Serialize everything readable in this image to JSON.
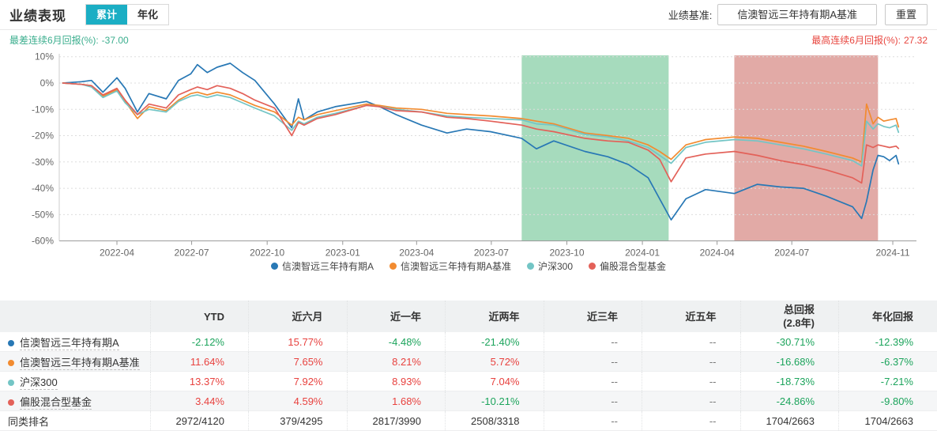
{
  "header": {
    "title": "业绩表现",
    "tabs": [
      {
        "label": "累计",
        "active": true
      },
      {
        "label": "年化",
        "active": false
      }
    ],
    "benchmark_label": "业绩基准:",
    "benchmark_value": "信澳智远三年持有期A基准",
    "reset_label": "重置"
  },
  "stats": {
    "worst_label": "最差连续6月回报(%):",
    "worst_value": "-37.00",
    "best_label": "最高连续6月回报(%):",
    "best_value": "27.32"
  },
  "colors": {
    "accent_tab": "#1BAEC4",
    "worst_text": "#3BAE8E",
    "best_text": "#E8463F",
    "cell": {
      "up": "#E8423F",
      "down": "#1CA45C",
      "plain": "#333333",
      "muted": "#777777"
    }
  },
  "chart_data": {
    "type": "line",
    "title": "",
    "xlabel": "",
    "ylabel": "",
    "ylabel_format": "percent",
    "ylim": [
      -60,
      10
    ],
    "grid": true,
    "legend_position": "bottom",
    "dates": [
      "2022-01-25",
      "2022-02-17",
      "2022-03-01",
      "2022-03-15",
      "2022-04-01",
      "2022-04-11",
      "2022-04-26",
      "2022-05-10",
      "2022-05-31",
      "2022-06-15",
      "2022-06-30",
      "2022-07-08",
      "2022-07-20",
      "2022-08-01",
      "2022-08-17",
      "2022-09-01",
      "2022-09-16",
      "2022-10-10",
      "2022-10-31",
      "2022-11-08",
      "2022-11-15",
      "2022-12-01",
      "2022-12-23",
      "2023-01-30",
      "2023-02-15",
      "2023-03-07",
      "2023-04-07",
      "2023-05-08",
      "2023-06-01",
      "2023-06-30",
      "2023-08-07",
      "2023-08-25",
      "2023-09-15",
      "2023-10-23",
      "2023-11-20",
      "2023-12-15",
      "2024-01-08",
      "2024-01-22",
      "2024-02-05",
      "2024-02-23",
      "2024-03-18",
      "2024-04-22",
      "2024-05-20",
      "2024-06-17",
      "2024-07-15",
      "2024-08-12",
      "2024-09-13",
      "2024-09-24",
      "2024-09-30",
      "2024-10-08",
      "2024-10-14",
      "2024-10-21",
      "2024-10-28",
      "2024-11-05",
      "2024-11-08"
    ],
    "series": [
      {
        "name": "信澳智远三年持有期A",
        "color": "#2878B5",
        "values": [
          0,
          0.5,
          1,
          -3.5,
          2,
          -2,
          -11,
          -4,
          -6,
          1,
          3.5,
          7,
          4,
          6,
          7.5,
          4,
          1,
          -8,
          -17,
          -6,
          -14,
          -11,
          -9,
          -7,
          -9,
          -12,
          -16,
          -19,
          -17.5,
          -18.5,
          -21,
          -25,
          -22,
          -26,
          -28,
          -31,
          -36,
          -44,
          -52,
          -44,
          -40.5,
          -42,
          -38.5,
          -39.5,
          -40,
          -43,
          -47,
          -51.5,
          -45,
          -33,
          -27.5,
          -28,
          -29.5,
          -27.5,
          -30.71
        ]
      },
      {
        "name": "信澳智远三年持有期A基准",
        "color": "#F28B30",
        "values": [
          0,
          -0.5,
          -1,
          -5,
          -2.5,
          -7,
          -13.5,
          -9,
          -10.5,
          -6.5,
          -4,
          -3.5,
          -4.5,
          -3.5,
          -4.5,
          -6.5,
          -8.5,
          -11,
          -16,
          -13,
          -14,
          -12,
          -10.5,
          -8,
          -8.5,
          -9.5,
          -10,
          -11.5,
          -12,
          -12.5,
          -13.5,
          -14.5,
          -15.5,
          -19,
          -20,
          -21,
          -23.5,
          -26,
          -29,
          -23.5,
          -21.5,
          -20.5,
          -21,
          -22.5,
          -24,
          -26,
          -28.5,
          -30,
          -8,
          -15.5,
          -13,
          -14.5,
          -14,
          -13.5,
          -16.68
        ]
      },
      {
        "name": "沪深300",
        "color": "#73C5C5",
        "values": [
          0,
          -0.5,
          -1.5,
          -5.5,
          -3,
          -7.5,
          -12,
          -10,
          -11,
          -7,
          -5,
          -4.5,
          -5.5,
          -4.5,
          -5.5,
          -7.5,
          -9.5,
          -12.5,
          -18,
          -14.5,
          -15.5,
          -13,
          -11.5,
          -8.5,
          -9,
          -10,
          -11,
          -12.5,
          -13,
          -13.5,
          -14,
          -15.5,
          -16,
          -19.5,
          -20.5,
          -22,
          -24.5,
          -27.5,
          -30.5,
          -24.5,
          -22.5,
          -21.5,
          -22,
          -23.5,
          -25,
          -27,
          -29.5,
          -31.5,
          -14.5,
          -17.5,
          -15.5,
          -16.5,
          -17,
          -16,
          -18.73
        ]
      },
      {
        "name": "偏股混合型基金",
        "color": "#E36159",
        "values": [
          0,
          -0.5,
          -1,
          -4.5,
          -2,
          -6.5,
          -12,
          -8,
          -9.5,
          -4.5,
          -2.5,
          -1.5,
          -2.5,
          -1,
          -2,
          -4,
          -6.5,
          -9.5,
          -20,
          -15,
          -16,
          -13.5,
          -12,
          -8.5,
          -9,
          -10.5,
          -11,
          -13,
          -13.5,
          -14.5,
          -16,
          -17.5,
          -18.5,
          -21,
          -22,
          -22.5,
          -25.5,
          -29,
          -37.5,
          -28.5,
          -27,
          -26,
          -27.5,
          -29.5,
          -31,
          -33,
          -36,
          -38,
          -23.5,
          -24.5,
          -23.5,
          -24,
          -24.5,
          -24,
          -24.86
        ]
      }
    ],
    "y_ticks": [
      10,
      0,
      -10,
      -20,
      -30,
      -40,
      -50,
      -60
    ],
    "x_ticks": [
      {
        "date": "2022-04-01",
        "label": "2022-04"
      },
      {
        "date": "2022-07-01",
        "label": "2022-07"
      },
      {
        "date": "2022-10-01",
        "label": "2022-10"
      },
      {
        "date": "2023-01-01",
        "label": "2023-01"
      },
      {
        "date": "2023-04-01",
        "label": "2023-04"
      },
      {
        "date": "2023-07-01",
        "label": "2023-07"
      },
      {
        "date": "2023-10-01",
        "label": "2023-10"
      },
      {
        "date": "2024-01-01",
        "label": "2024-01"
      },
      {
        "date": "2024-04-01",
        "label": "2024-04"
      },
      {
        "date": "2024-07-01",
        "label": "2024-07"
      },
      {
        "date": "2024-11-01",
        "label": "2024-11"
      }
    ],
    "bands": [
      {
        "from": "2023-08-07",
        "to": "2024-02-02",
        "color": "#97D5B2"
      },
      {
        "from": "2024-04-22",
        "to": "2024-10-14",
        "color": "#DD9B96"
      }
    ]
  },
  "table": {
    "columns": [
      "",
      "YTD",
      "近六月",
      "近一年",
      "近两年",
      "近三年",
      "近五年",
      "总回报\n(2.8年)",
      "年化回报"
    ],
    "rows": [
      {
        "label": "信澳智远三年持有期A",
        "dot": "#2878B5",
        "cells": [
          {
            "t": "-2.12%",
            "k": "down"
          },
          {
            "t": "15.77%",
            "k": "up"
          },
          {
            "t": "-4.48%",
            "k": "down"
          },
          {
            "t": "-21.40%",
            "k": "down"
          },
          {
            "t": "--",
            "k": "muted"
          },
          {
            "t": "--",
            "k": "muted"
          },
          {
            "t": "-30.71%",
            "k": "down"
          },
          {
            "t": "-12.39%",
            "k": "down"
          }
        ]
      },
      {
        "label": "信澳智远三年持有期A基准",
        "dot": "#F28B30",
        "cells": [
          {
            "t": "11.64%",
            "k": "up"
          },
          {
            "t": "7.65%",
            "k": "up"
          },
          {
            "t": "8.21%",
            "k": "up"
          },
          {
            "t": "5.72%",
            "k": "up"
          },
          {
            "t": "--",
            "k": "muted"
          },
          {
            "t": "--",
            "k": "muted"
          },
          {
            "t": "-16.68%",
            "k": "down"
          },
          {
            "t": "-6.37%",
            "k": "down"
          }
        ]
      },
      {
        "label": "沪深300",
        "dot": "#73C5C5",
        "cells": [
          {
            "t": "13.37%",
            "k": "up"
          },
          {
            "t": "7.92%",
            "k": "up"
          },
          {
            "t": "8.93%",
            "k": "up"
          },
          {
            "t": "7.04%",
            "k": "up"
          },
          {
            "t": "--",
            "k": "muted"
          },
          {
            "t": "--",
            "k": "muted"
          },
          {
            "t": "-18.73%",
            "k": "down"
          },
          {
            "t": "-7.21%",
            "k": "down"
          }
        ]
      },
      {
        "label": "偏股混合型基金",
        "dot": "#E36159",
        "cells": [
          {
            "t": "3.44%",
            "k": "up"
          },
          {
            "t": "4.59%",
            "k": "up"
          },
          {
            "t": "1.68%",
            "k": "up"
          },
          {
            "t": "-10.21%",
            "k": "down"
          },
          {
            "t": "--",
            "k": "muted"
          },
          {
            "t": "--",
            "k": "muted"
          },
          {
            "t": "-24.86%",
            "k": "down"
          },
          {
            "t": "-9.80%",
            "k": "down"
          }
        ]
      },
      {
        "label": "同类排名",
        "dot": null,
        "cells": [
          {
            "t": "2972/4120",
            "k": "plain"
          },
          {
            "t": "379/4295",
            "k": "plain"
          },
          {
            "t": "2817/3990",
            "k": "plain"
          },
          {
            "t": "2508/3318",
            "k": "plain"
          },
          {
            "t": "--",
            "k": "muted"
          },
          {
            "t": "--",
            "k": "muted"
          },
          {
            "t": "1704/2663",
            "k": "plain"
          },
          {
            "t": "1704/2663",
            "k": "plain"
          }
        ]
      }
    ]
  }
}
